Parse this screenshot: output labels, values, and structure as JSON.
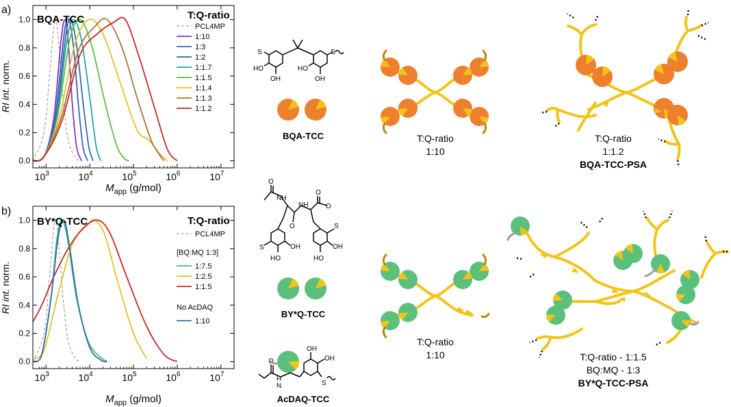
{
  "figure": {
    "panels": [
      {
        "letter": "a)",
        "title": "BQA-TCC",
        "legend_title": "T:Q-ratio",
        "molecule": "BQA-TCC",
        "schematic1_label": [
          "T:Q-ratio",
          "1:10"
        ],
        "schematic2_label": [
          "T:Q-ratio",
          "1:1.2"
        ],
        "schematic2_name": "BQA-TCC-PSA"
      },
      {
        "letter": "b)",
        "title": "BY*Q-TCC",
        "legend_title": "T:Q-ratio",
        "legend_group1": "[BQ:MQ 1:3]",
        "legend_group2": "No AcDAQ",
        "molecule1": "BY*Q-TCC",
        "molecule2": "AcDAQ-TCC",
        "schematic1_label": [
          "T:Q-ratio",
          "1:10"
        ],
        "schematic2_label": [
          "T:Q-ratio - 1:1.5",
          "BQ:MQ - 1:3"
        ],
        "schematic2_name": "BY*Q-TCC-PSA"
      }
    ],
    "atoms": {
      "ho": "HO",
      "oh": "OH",
      "s": "S",
      "o": "O",
      "nh": "NH",
      "n": "N",
      "h": "H"
    }
  },
  "colors": {
    "orange": "#EE7F2D",
    "yellow": "#F2C419",
    "green": "#5BC07A",
    "dark_arm": "#B8860B",
    "grey": "#9E9E9E"
  },
  "chart_data": [
    {
      "type": "line",
      "panel": "a",
      "xlabel": "M_app (g/mol)",
      "ylabel": "RI int. norm.",
      "xscale": "log",
      "xlim": [
        500,
        20000000
      ],
      "ylim": [
        -0.05,
        1.1
      ],
      "xticks": [
        1000,
        10000,
        100000,
        1000000,
        10000000
      ],
      "xtick_labels": [
        "10^3",
        "10^4",
        "10^5",
        "10^6",
        "10^7"
      ],
      "yticks": [
        0.0,
        0.2,
        0.4,
        0.6,
        0.8,
        1.0
      ],
      "ytick_labels": [
        "0.0",
        "0.2",
        "0.4",
        "0.6",
        "0.8",
        "1.0"
      ],
      "legend_placement": "top-right",
      "series": [
        {
          "name": "PCL4MP",
          "color": "#9E9E9E",
          "dashed": true,
          "points": [
            [
              500,
              0.0
            ],
            [
              900,
              0.2
            ],
            [
              1200,
              0.6
            ],
            [
              1600,
              1.0
            ],
            [
              2000,
              0.8
            ],
            [
              2500,
              0.42
            ],
            [
              3200,
              0.15
            ],
            [
              4500,
              0.03
            ],
            [
              6000,
              0.0
            ]
          ]
        },
        {
          "name": "1:10",
          "color": "#8B2FC9",
          "points": [
            [
              500,
              0.0
            ],
            [
              900,
              0.03
            ],
            [
              1500,
              0.3
            ],
            [
              2200,
              0.85
            ],
            [
              2700,
              1.0
            ],
            [
              3200,
              0.85
            ],
            [
              4000,
              0.4
            ],
            [
              5000,
              0.1
            ],
            [
              6500,
              0.0
            ]
          ]
        },
        {
          "name": "1:3",
          "color": "#3D5FB8",
          "points": [
            [
              500,
              0.0
            ],
            [
              900,
              0.03
            ],
            [
              1600,
              0.3
            ],
            [
              2600,
              0.9
            ],
            [
              3300,
              1.0
            ],
            [
              4200,
              0.82
            ],
            [
              5500,
              0.4
            ],
            [
              7000,
              0.1
            ],
            [
              9000,
              0.0
            ]
          ]
        },
        {
          "name": "1:2",
          "color": "#2D6DA6",
          "points": [
            [
              500,
              0.0
            ],
            [
              900,
              0.03
            ],
            [
              1700,
              0.3
            ],
            [
              2800,
              0.88
            ],
            [
              3700,
              1.0
            ],
            [
              5000,
              0.82
            ],
            [
              7000,
              0.42
            ],
            [
              9500,
              0.1
            ],
            [
              12000,
              0.0
            ]
          ]
        },
        {
          "name": "1:1.7",
          "color": "#1FA5A0",
          "points": [
            [
              500,
              0.0
            ],
            [
              900,
              0.03
            ],
            [
              1700,
              0.28
            ],
            [
              3000,
              0.85
            ],
            [
              4300,
              1.0
            ],
            [
              6500,
              0.85
            ],
            [
              10000,
              0.45
            ],
            [
              14000,
              0.1
            ],
            [
              18000,
              0.0
            ]
          ]
        },
        {
          "name": "1:1.5",
          "color": "#5DBE3C",
          "points": [
            [
              500,
              0.0
            ],
            [
              900,
              0.03
            ],
            [
              1800,
              0.3
            ],
            [
              3500,
              0.86
            ],
            [
              6000,
              1.0
            ],
            [
              11000,
              0.82
            ],
            [
              22000,
              0.42
            ],
            [
              40000,
              0.12
            ],
            [
              60000,
              0.02
            ],
            [
              80000,
              0.0
            ]
          ]
        },
        {
          "name": "1:1.4",
          "color": "#E3C02B",
          "points": [
            [
              500,
              0.0
            ],
            [
              900,
              0.03
            ],
            [
              2000,
              0.3
            ],
            [
              4500,
              0.82
            ],
            [
              9500,
              1.0
            ],
            [
              20000,
              0.9
            ],
            [
              50000,
              0.55
            ],
            [
              120000,
              0.22
            ],
            [
              220000,
              0.15
            ],
            [
              400000,
              0.05
            ],
            [
              600000,
              0.0
            ]
          ]
        },
        {
          "name": "1:1.3",
          "color": "#A6763A",
          "points": [
            [
              500,
              0.0
            ],
            [
              900,
              0.03
            ],
            [
              2200,
              0.3
            ],
            [
              5500,
              0.78
            ],
            [
              13000,
              0.95
            ],
            [
              25000,
              1.0
            ],
            [
              55000,
              0.8
            ],
            [
              120000,
              0.45
            ],
            [
              250000,
              0.15
            ],
            [
              400000,
              0.04
            ],
            [
              500000,
              0.0
            ]
          ]
        },
        {
          "name": "1:1.2",
          "color": "#C62828",
          "points": [
            [
              500,
              0.0
            ],
            [
              900,
              0.03
            ],
            [
              2300,
              0.28
            ],
            [
              6000,
              0.75
            ],
            [
              15000,
              0.9
            ],
            [
              35000,
              0.98
            ],
            [
              65000,
              1.0
            ],
            [
              130000,
              0.75
            ],
            [
              300000,
              0.38
            ],
            [
              600000,
              0.08
            ],
            [
              1000000,
              0.0
            ]
          ]
        }
      ]
    },
    {
      "type": "line",
      "panel": "b",
      "xlabel": "M_app (g/mol)",
      "ylabel": "RI int. norm.",
      "xscale": "log",
      "xlim": [
        500,
        20000000
      ],
      "ylim": [
        -0.05,
        1.1
      ],
      "xticks": [
        1000,
        10000,
        100000,
        1000000,
        10000000
      ],
      "xtick_labels": [
        "10^3",
        "10^4",
        "10^5",
        "10^6",
        "10^7"
      ],
      "yticks": [
        0.0,
        0.2,
        0.4,
        0.6,
        0.8,
        1.0
      ],
      "ytick_labels": [
        "0.0",
        "0.2",
        "0.4",
        "0.6",
        "0.8",
        "1.0"
      ],
      "legend_placement": "top-right",
      "series": [
        {
          "name": "PCL4MP",
          "color": "#9E9E9E",
          "dashed": true,
          "points": [
            [
              500,
              0.0
            ],
            [
              900,
              0.2
            ],
            [
              1200,
              0.6
            ],
            [
              1600,
              1.0
            ],
            [
              2000,
              0.8
            ],
            [
              2500,
              0.42
            ],
            [
              3200,
              0.15
            ],
            [
              4500,
              0.03
            ],
            [
              6000,
              0.0
            ]
          ]
        },
        {
          "name": "1:7.5",
          "color": "#3FB98A",
          "points": [
            [
              500,
              0.0
            ],
            [
              800,
              0.05
            ],
            [
              1300,
              0.45
            ],
            [
              1800,
              0.88
            ],
            [
              2400,
              1.0
            ],
            [
              3300,
              0.82
            ],
            [
              5000,
              0.45
            ],
            [
              9000,
              0.15
            ],
            [
              16000,
              0.04
            ],
            [
              25000,
              0.0
            ]
          ]
        },
        {
          "name": "1:2.5",
          "color": "#E3C02B",
          "points": [
            [
              500,
              0.02
            ],
            [
              900,
              0.08
            ],
            [
              1800,
              0.45
            ],
            [
              4000,
              0.83
            ],
            [
              9000,
              0.97
            ],
            [
              13000,
              1.0
            ],
            [
              22000,
              0.9
            ],
            [
              45000,
              0.55
            ],
            [
              100000,
              0.2
            ],
            [
              200000,
              0.02
            ]
          ]
        },
        {
          "name": "1:1.5",
          "color": "#C62828",
          "points": [
            [
              500,
              0.28
            ],
            [
              800,
              0.4
            ],
            [
              1500,
              0.6
            ],
            [
              3500,
              0.82
            ],
            [
              8000,
              0.96
            ],
            [
              16000,
              1.0
            ],
            [
              30000,
              0.9
            ],
            [
              70000,
              0.6
            ],
            [
              200000,
              0.25
            ],
            [
              500000,
              0.05
            ],
            [
              1000000,
              0.0
            ]
          ]
        },
        {
          "name": "1:10",
          "color": "#2D6DA6",
          "points": [
            [
              500,
              0.0
            ],
            [
              800,
              0.05
            ],
            [
              1300,
              0.45
            ],
            [
              1900,
              0.88
            ],
            [
              2600,
              1.0
            ],
            [
              3500,
              0.8
            ],
            [
              5500,
              0.4
            ],
            [
              10000,
              0.1
            ],
            [
              18000,
              0.01
            ],
            [
              25000,
              0.0
            ]
          ]
        }
      ]
    }
  ]
}
